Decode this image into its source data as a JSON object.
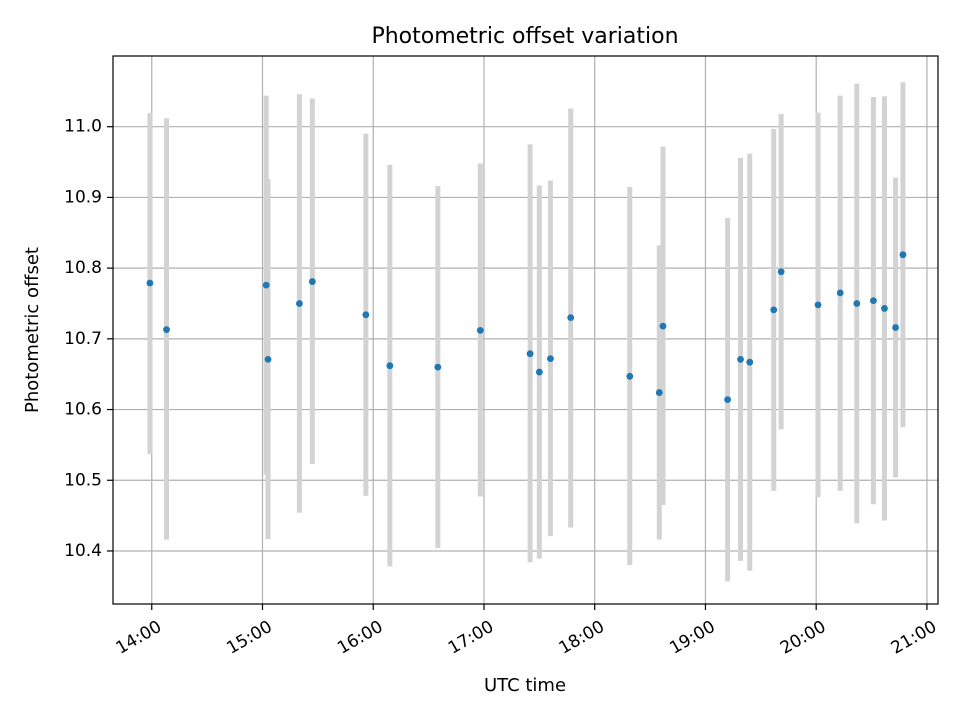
{
  "chart_data": {
    "type": "scatter",
    "title": "Photometric offset variation",
    "xlabel": "UTC time",
    "ylabel": "Photometric offset",
    "grid": true,
    "colors": {
      "points": "#1f77b4",
      "errorbars": "#d3d3d3",
      "grid": "#b0b0b0"
    },
    "xlim": [
      "13:39",
      "21:06"
    ],
    "ylim": [
      10.325,
      11.1
    ],
    "xticks": [
      "14:00",
      "15:00",
      "16:00",
      "17:00",
      "18:00",
      "19:00",
      "20:00",
      "21:00"
    ],
    "yticks": [
      "10.4",
      "10.5",
      "10.6",
      "10.7",
      "10.8",
      "10.9",
      "11.0"
    ],
    "series": [
      {
        "points": [
          {
            "x": "13:59",
            "y": 10.779,
            "ylow": 10.537,
            "yhigh": 11.019
          },
          {
            "x": "14:08",
            "y": 10.713,
            "ylow": 10.416,
            "yhigh": 11.012
          },
          {
            "x": "15:02",
            "y": 10.776,
            "ylow": 10.508,
            "yhigh": 11.044
          },
          {
            "x": "15:03",
            "y": 10.671,
            "ylow": 10.417,
            "yhigh": 10.926
          },
          {
            "x": "15:20",
            "y": 10.75,
            "ylow": 10.454,
            "yhigh": 11.046
          },
          {
            "x": "15:27",
            "y": 10.781,
            "ylow": 10.523,
            "yhigh": 11.04
          },
          {
            "x": "15:56",
            "y": 10.734,
            "ylow": 10.478,
            "yhigh": 10.99
          },
          {
            "x": "16:09",
            "y": 10.662,
            "ylow": 10.378,
            "yhigh": 10.946
          },
          {
            "x": "16:35",
            "y": 10.66,
            "ylow": 10.404,
            "yhigh": 10.916
          },
          {
            "x": "16:58",
            "y": 10.712,
            "ylow": 10.477,
            "yhigh": 10.948
          },
          {
            "x": "17:25",
            "y": 10.679,
            "ylow": 10.384,
            "yhigh": 10.975
          },
          {
            "x": "17:30",
            "y": 10.653,
            "ylow": 10.389,
            "yhigh": 10.917
          },
          {
            "x": "17:36",
            "y": 10.672,
            "ylow": 10.421,
            "yhigh": 10.924
          },
          {
            "x": "17:47",
            "y": 10.73,
            "ylow": 10.433,
            "yhigh": 11.026
          },
          {
            "x": "18:19",
            "y": 10.647,
            "ylow": 10.38,
            "yhigh": 10.915
          },
          {
            "x": "18:35",
            "y": 10.624,
            "ylow": 10.416,
            "yhigh": 10.832
          },
          {
            "x": "18:37",
            "y": 10.718,
            "ylow": 10.465,
            "yhigh": 10.972
          },
          {
            "x": "19:12",
            "y": 10.614,
            "ylow": 10.357,
            "yhigh": 10.871
          },
          {
            "x": "19:19",
            "y": 10.671,
            "ylow": 10.386,
            "yhigh": 10.956
          },
          {
            "x": "19:24",
            "y": 10.667,
            "ylow": 10.372,
            "yhigh": 10.962
          },
          {
            "x": "19:37",
            "y": 10.741,
            "ylow": 10.485,
            "yhigh": 10.997
          },
          {
            "x": "19:41",
            "y": 10.795,
            "ylow": 10.572,
            "yhigh": 11.018
          },
          {
            "x": "20:01",
            "y": 10.748,
            "ylow": 10.476,
            "yhigh": 11.02
          },
          {
            "x": "20:13",
            "y": 10.765,
            "ylow": 10.485,
            "yhigh": 11.044
          },
          {
            "x": "20:22",
            "y": 10.75,
            "ylow": 10.439,
            "yhigh": 11.061
          },
          {
            "x": "20:31",
            "y": 10.754,
            "ylow": 10.466,
            "yhigh": 11.042
          },
          {
            "x": "20:37",
            "y": 10.743,
            "ylow": 10.443,
            "yhigh": 11.043
          },
          {
            "x": "20:43",
            "y": 10.716,
            "ylow": 10.504,
            "yhigh": 10.928
          },
          {
            "x": "20:47",
            "y": 10.819,
            "ylow": 10.575,
            "yhigh": 11.063
          }
        ]
      }
    ]
  }
}
